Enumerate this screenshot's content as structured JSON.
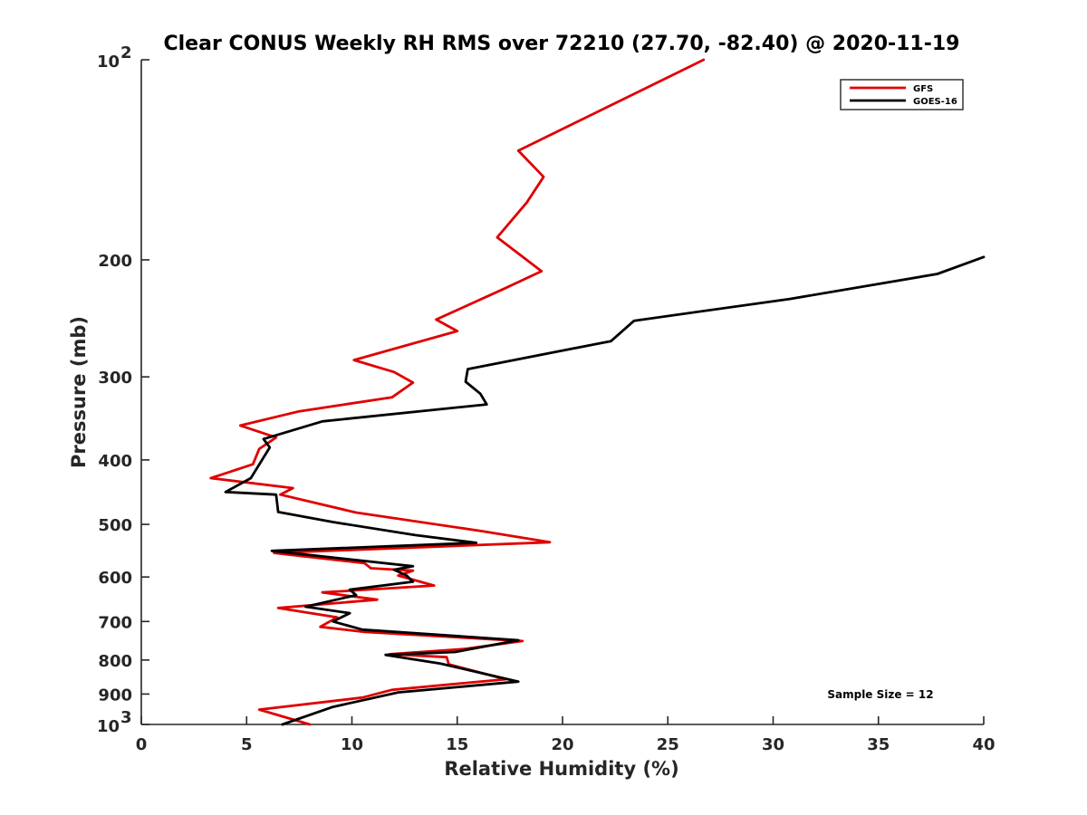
{
  "chart_data": {
    "type": "line",
    "title": "Clear CONUS Weekly RH RMS over 72210 (27.70, -82.40) @ 2020-11-19",
    "xlabel": "Relative Humidity (%)",
    "ylabel": "Pressure (mb)",
    "xlim": [
      0,
      40
    ],
    "ylim": [
      100,
      1000
    ],
    "y_scale": "log",
    "y_reversed": true,
    "x_ticks": [
      0,
      5,
      10,
      15,
      20,
      25,
      30,
      35,
      40
    ],
    "y_ticks": [
      {
        "value": 100,
        "base": "10",
        "exp": "2"
      },
      {
        "value": 200,
        "label": "200"
      },
      {
        "value": 300,
        "label": "300"
      },
      {
        "value": 400,
        "label": "400"
      },
      {
        "value": 500,
        "label": "500"
      },
      {
        "value": 600,
        "label": "600"
      },
      {
        "value": 700,
        "label": "700"
      },
      {
        "value": 800,
        "label": "800"
      },
      {
        "value": 900,
        "label": "900"
      },
      {
        "value": 1000,
        "base": "10",
        "exp": "3"
      }
    ],
    "grid": false,
    "legend_position": "top-right",
    "series": [
      {
        "name": "GFS",
        "color": "#e00000",
        "points": [
          [
            26.7,
            100
          ],
          [
            17.9,
            137
          ],
          [
            19.1,
            150
          ],
          [
            18.3,
            164
          ],
          [
            16.9,
            185
          ],
          [
            19.0,
            208
          ],
          [
            17.1,
            222
          ],
          [
            14.0,
            246
          ],
          [
            15.0,
            256
          ],
          [
            10.1,
            283
          ],
          [
            12.0,
            295
          ],
          [
            12.9,
            306
          ],
          [
            11.9,
            322
          ],
          [
            7.5,
            338
          ],
          [
            4.7,
            355
          ],
          [
            6.4,
            370
          ],
          [
            5.6,
            385
          ],
          [
            5.3,
            406
          ],
          [
            3.3,
            426
          ],
          [
            7.2,
            441
          ],
          [
            6.6,
            451
          ],
          [
            10.2,
            480
          ],
          [
            16.2,
            512
          ],
          [
            19.4,
            532
          ],
          [
            6.3,
            552
          ],
          [
            10.6,
            572
          ],
          [
            10.9,
            582
          ],
          [
            12.9,
            587
          ],
          [
            12.2,
            597
          ],
          [
            13.9,
            618
          ],
          [
            8.6,
            633
          ],
          [
            11.2,
            649
          ],
          [
            6.5,
            668
          ],
          [
            9.3,
            690
          ],
          [
            8.5,
            713
          ],
          [
            10.6,
            726
          ],
          [
            18.1,
            749
          ],
          [
            15.3,
            770
          ],
          [
            11.8,
            784
          ],
          [
            14.5,
            792
          ],
          [
            14.6,
            812
          ],
          [
            17.3,
            855
          ],
          [
            11.9,
            887
          ],
          [
            10.5,
            911
          ],
          [
            5.6,
            950
          ],
          [
            8.0,
            1000
          ]
        ]
      },
      {
        "name": "GOES-16",
        "color": "#000000",
        "points": [
          [
            40.0,
            198
          ],
          [
            37.8,
            210
          ],
          [
            30.8,
            229
          ],
          [
            23.4,
            247
          ],
          [
            22.3,
            265
          ],
          [
            15.5,
            292
          ],
          [
            15.4,
            305
          ],
          [
            16.1,
            318
          ],
          [
            16.4,
            330
          ],
          [
            8.6,
            350
          ],
          [
            5.8,
            372
          ],
          [
            6.1,
            383
          ],
          [
            5.2,
            426
          ],
          [
            4.0,
            447
          ],
          [
            6.4,
            451
          ],
          [
            6.5,
            479
          ],
          [
            9.1,
            496
          ],
          [
            13.0,
            519
          ],
          [
            15.9,
            533
          ],
          [
            6.2,
            548
          ],
          [
            12.9,
            578
          ],
          [
            12.0,
            585
          ],
          [
            12.6,
            597
          ],
          [
            12.9,
            610
          ],
          [
            9.9,
            627
          ],
          [
            10.2,
            639
          ],
          [
            7.8,
            665
          ],
          [
            9.9,
            680
          ],
          [
            9.1,
            700
          ],
          [
            10.5,
            720
          ],
          [
            17.9,
            747
          ],
          [
            14.9,
            778
          ],
          [
            11.6,
            786
          ],
          [
            14.2,
            810
          ],
          [
            17.9,
            862
          ],
          [
            12.2,
            895
          ],
          [
            9.1,
            941
          ],
          [
            6.7,
            1000
          ]
        ]
      }
    ],
    "annotation": "Sample Size = 12"
  }
}
